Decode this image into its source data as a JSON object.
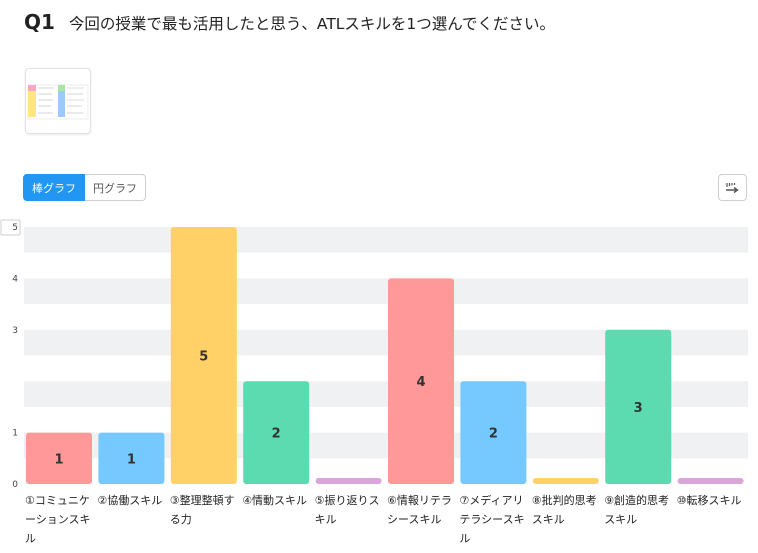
{
  "question": {
    "number": "Q1",
    "text": "今回の授業で最も活用したと思う、ATLスキルを1つ選んでください。"
  },
  "toggle": {
    "bar_label": "棒グラフ",
    "pie_label": "円グラフ"
  },
  "icons": {
    "sort": "sort-bars-icon",
    "thumbnail": "image-thumbnail-icon"
  },
  "chart_data": {
    "type": "bar",
    "categories": [
      [
        "①コミュニケ",
        "ーションスキ",
        "ル"
      ],
      [
        "②協働スキル"
      ],
      [
        "③整理整頓す",
        "る力"
      ],
      [
        "④情動スキル"
      ],
      [
        "⑤振り返りス",
        "キル"
      ],
      [
        "⑥情報リテラ",
        "シースキル"
      ],
      [
        "⑦メディアリ",
        "テラシースキ",
        "ル"
      ],
      [
        "⑧批判的思考",
        "スキル"
      ],
      [
        "⑨創造的思考",
        "スキル"
      ],
      [
        "⑩転移スキル"
      ]
    ],
    "values": [
      1,
      1,
      5,
      2,
      0,
      4,
      2,
      0,
      3,
      0
    ],
    "colors": [
      "#ff9999",
      "#75c9ff",
      "#ffd166",
      "#5cdbb1",
      "#d9a5db",
      "#ff9999",
      "#75c9ff",
      "#ffd166",
      "#5cdbb1",
      "#d9a5db"
    ],
    "y_ticks": [
      "0",
      "1",
      "3",
      "4",
      "5"
    ],
    "ylim": [
      0,
      5
    ],
    "grid": true
  }
}
